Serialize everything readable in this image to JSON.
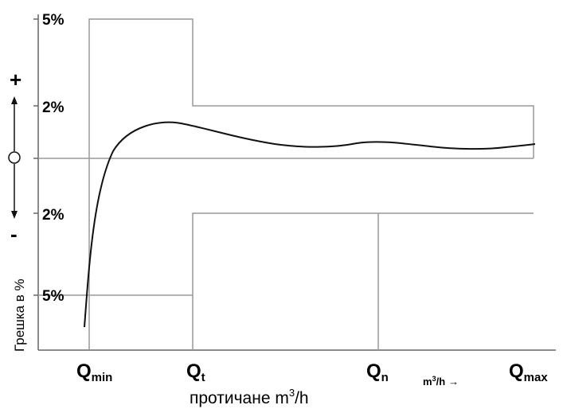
{
  "y_axis": {
    "label": "Грешка в %",
    "plus_sign": "+",
    "minus_sign": "-",
    "ticks": {
      "pos5": "5%",
      "pos2": "2%",
      "neg2": "2%",
      "neg5": "5%"
    }
  },
  "x_axis": {
    "label_main": "протичане m",
    "label_sup": "3",
    "label_tail": "/h",
    "unit_base": "m",
    "unit_sup": "3",
    "unit_tail": "/h",
    "unit_arrow": "→",
    "points": [
      {
        "letter": "Q",
        "sub": "min"
      },
      {
        "letter": "Q",
        "sub": "t"
      },
      {
        "letter": "Q",
        "sub": "n"
      },
      {
        "letter": "Q",
        "sub": "max"
      }
    ]
  },
  "colors": {
    "axis": "#666666",
    "envelope": "#999999",
    "curve": "#111111"
  }
}
